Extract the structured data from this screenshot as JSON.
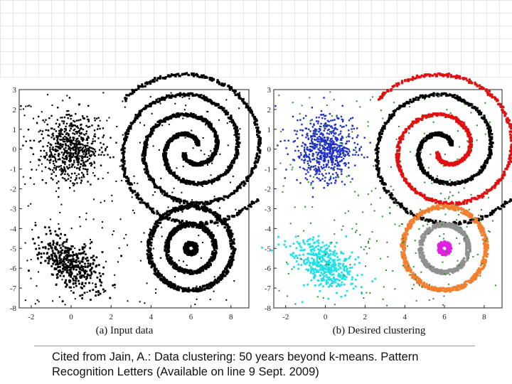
{
  "chart_data": [
    {
      "type": "scatter",
      "caption": "(a) Input data",
      "xlim": [
        -2.6,
        8.9
      ],
      "ylim": [
        -8,
        3
      ],
      "xticks": [
        "-2",
        "0",
        "2",
        "4",
        "6",
        "8"
      ],
      "yticks": [
        "3",
        "2",
        "1",
        "0",
        "-1",
        "-2",
        "-3",
        "-4",
        "-5",
        "-6",
        "-7",
        "-8"
      ],
      "grid": false,
      "series": [
        {
          "color": "#000000",
          "shape": "gaussian-blob",
          "center": [
            0,
            0
          ],
          "spread": [
            0.75,
            0.8
          ],
          "points": 650
        },
        {
          "color": "#000000",
          "shape": "spiral",
          "center": [
            6,
            0
          ],
          "turns": 1.8,
          "arms": 2
        },
        {
          "color": "#000000",
          "shape": "rings",
          "center": [
            6,
            -5
          ],
          "radii": [
            2.1,
            1.2,
            0.25
          ]
        },
        {
          "color": "#000000",
          "shape": "elongated-blob",
          "center": [
            0,
            -5.8
          ],
          "spread": [
            0.9,
            0.5
          ],
          "angle": -35,
          "points": 420
        },
        {
          "color": "#000000",
          "shape": "uniform-noise",
          "points": 260
        }
      ]
    },
    {
      "type": "scatter",
      "caption": "(b) Desired clustering",
      "xlim": [
        -2.6,
        8.9
      ],
      "ylim": [
        -8,
        3
      ],
      "xticks": [
        "-2",
        "0",
        "2",
        "4",
        "6",
        "8"
      ],
      "yticks": [
        "3",
        "2",
        "1",
        "0",
        "-1",
        "-2",
        "-3",
        "-4",
        "-5",
        "-6",
        "-7",
        "-8"
      ],
      "grid": false,
      "series": [
        {
          "color": "#1f2fc8",
          "shape": "gaussian-blob",
          "center": [
            0,
            0
          ],
          "spread": [
            0.75,
            0.8
          ],
          "points": 650
        },
        {
          "color": "#000000",
          "shape": "spiral-arm",
          "center": [
            6,
            0
          ],
          "turns": 1.8,
          "arm": 0
        },
        {
          "color": "#e01010",
          "shape": "spiral-arm",
          "center": [
            6,
            0
          ],
          "turns": 1.8,
          "arm": 1
        },
        {
          "color": "#f08030",
          "shape": "ring",
          "center": [
            6,
            -5
          ],
          "radius": 2.1
        },
        {
          "color": "#909090",
          "shape": "ring",
          "center": [
            6,
            -5
          ],
          "radius": 1.2
        },
        {
          "color": "#e020e0",
          "shape": "ring",
          "center": [
            6,
            -5
          ],
          "radius": 0.25
        },
        {
          "color": "#20e0e8",
          "shape": "elongated-blob",
          "center": [
            0,
            -5.8
          ],
          "spread": [
            0.9,
            0.5
          ],
          "angle": -35,
          "points": 420
        },
        {
          "color": "#2e8b2e",
          "shape": "uniform-noise",
          "points": 260
        }
      ]
    }
  ],
  "citation": {
    "line1": "Cited from Jain, A.: Data clustering: 50 years beyond k-means. Pattern",
    "line2": "Recognition Letters (Available on line 9 Sept. 2009)"
  }
}
